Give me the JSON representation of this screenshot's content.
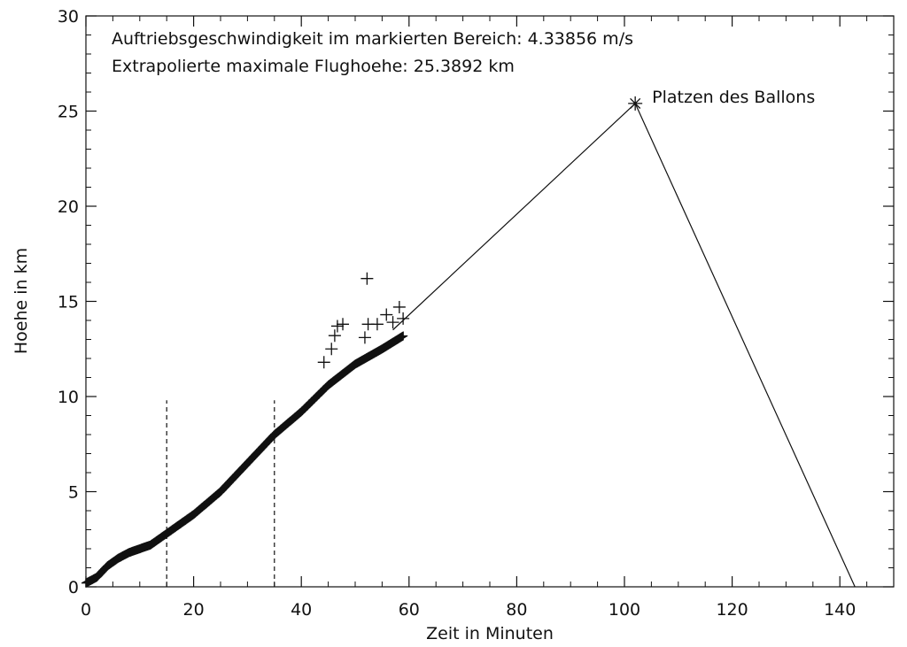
{
  "chart_data": {
    "type": "scatter",
    "xlabel": "Zeit in Minuten",
    "ylabel": "Hoehe in km",
    "xlim": [
      0,
      150
    ],
    "ylim": [
      0,
      30
    ],
    "x_ticks": [
      "0",
      "20",
      "40",
      "60",
      "80",
      "100",
      "120",
      "140"
    ],
    "y_ticks": [
      "0",
      "5",
      "10",
      "15",
      "20",
      "25",
      "30"
    ],
    "grid": false,
    "annotations": [
      "Auftriebsgeschwindigkeit im markierten Bereich: 4.33856 m/s",
      "Extrapolierte maximale Flughoehe: 25.3892 km"
    ],
    "marked_range": {
      "x_start": 15,
      "x_end": 35
    },
    "burst_point": {
      "x": 102,
      "y": 25.4,
      "label": "Platzen des Ballons"
    },
    "ascent_path": [
      {
        "x": 0,
        "y": 0.2
      },
      {
        "x": 2,
        "y": 0.5
      },
      {
        "x": 4,
        "y": 1.1
      },
      {
        "x": 6,
        "y": 1.5
      },
      {
        "x": 8,
        "y": 1.8
      },
      {
        "x": 10,
        "y": 2.0
      },
      {
        "x": 12,
        "y": 2.2
      },
      {
        "x": 14,
        "y": 2.6
      },
      {
        "x": 15,
        "y": 2.8
      },
      {
        "x": 20,
        "y": 3.8
      },
      {
        "x": 25,
        "y": 5.0
      },
      {
        "x": 30,
        "y": 6.5
      },
      {
        "x": 35,
        "y": 8.0
      },
      {
        "x": 40,
        "y": 9.2
      },
      {
        "x": 45,
        "y": 10.6
      },
      {
        "x": 50,
        "y": 11.7
      },
      {
        "x": 55,
        "y": 12.5
      },
      {
        "x": 59,
        "y": 13.2
      }
    ],
    "outliers": [
      {
        "x": 52.2,
        "y": 16.2
      },
      {
        "x": 58.2,
        "y": 14.7
      },
      {
        "x": 46.7,
        "y": 13.7
      },
      {
        "x": 47.7,
        "y": 13.8
      },
      {
        "x": 52.4,
        "y": 13.8
      },
      {
        "x": 54.1,
        "y": 13.8
      },
      {
        "x": 55.8,
        "y": 14.3
      },
      {
        "x": 46.2,
        "y": 13.2
      },
      {
        "x": 45.6,
        "y": 12.5
      },
      {
        "x": 44.2,
        "y": 11.8
      },
      {
        "x": 51.8,
        "y": 13.1
      },
      {
        "x": 57.0,
        "y": 13.9
      },
      {
        "x": 58.9,
        "y": 14.1
      }
    ],
    "extrapolation_line": [
      {
        "x": 57,
        "y": 13.5
      },
      {
        "x": 102,
        "y": 25.4
      },
      {
        "x": 142.8,
        "y": 0
      }
    ]
  }
}
